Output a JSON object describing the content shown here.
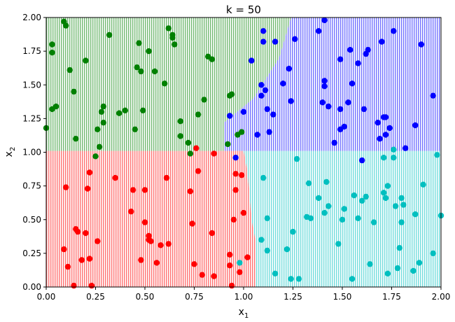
{
  "chart_data": {
    "type": "scatter",
    "title": "k = 50",
    "xlabel_base": "x",
    "xlabel_sub": "1",
    "ylabel_base": "x",
    "ylabel_sub": "2",
    "xlim": [
      0,
      2
    ],
    "ylim": [
      0,
      2
    ],
    "xticks": [
      "0.00",
      "0.25",
      "0.50",
      "0.75",
      "1.00",
      "1.25",
      "1.50",
      "1.75",
      "2.00"
    ],
    "yticks": [
      "0.00",
      "0.25",
      "0.50",
      "0.75",
      "1.00",
      "1.25",
      "1.50",
      "1.75",
      "2.00"
    ],
    "grid": false,
    "legend": "none",
    "background": "dense dotted decision regions (k-NN, k = 50)",
    "colors": {
      "green": "#008000",
      "blue": "#0000ff",
      "red": "#ff0000",
      "cyan": "#00bfbf"
    },
    "regions": [
      {
        "color": "green",
        "polygon": [
          [
            0,
            1.01
          ],
          [
            0.9,
            1.01
          ],
          [
            0.9,
            1.22
          ],
          [
            1.05,
            1.4
          ],
          [
            1.18,
            1.7
          ],
          [
            1.24,
            2.0
          ],
          [
            0,
            2.0
          ]
        ]
      },
      {
        "color": "blue",
        "polygon": [
          [
            0.9,
            1.01
          ],
          [
            2.0,
            1.01
          ],
          [
            2.0,
            2.0
          ],
          [
            1.24,
            2.0
          ],
          [
            1.18,
            1.7
          ],
          [
            1.05,
            1.4
          ],
          [
            0.9,
            1.22
          ]
        ]
      },
      {
        "color": "red",
        "polygon": [
          [
            0,
            0
          ],
          [
            1.06,
            0
          ],
          [
            1.06,
            0.35
          ],
          [
            1.04,
            0.5
          ],
          [
            1.02,
            0.85
          ],
          [
            1.0,
            1.01
          ],
          [
            0,
            1.01
          ]
        ]
      },
      {
        "color": "cyan",
        "polygon": [
          [
            1.06,
            0
          ],
          [
            2.0,
            0
          ],
          [
            2.0,
            1.01
          ],
          [
            1.0,
            1.01
          ],
          [
            1.02,
            0.85
          ],
          [
            1.04,
            0.5
          ],
          [
            1.06,
            0.35
          ]
        ]
      }
    ],
    "series": [
      {
        "color": "green",
        "points": [
          [
            0.0,
            1.18
          ],
          [
            0.03,
            1.74
          ],
          [
            0.03,
            1.8
          ],
          [
            0.03,
            1.32
          ],
          [
            0.05,
            1.34
          ],
          [
            0.09,
            1.97
          ],
          [
            0.1,
            1.94
          ],
          [
            0.12,
            1.61
          ],
          [
            0.14,
            1.45
          ],
          [
            0.15,
            1.1
          ],
          [
            0.2,
            1.68
          ],
          [
            0.25,
            0.97
          ],
          [
            0.26,
            1.17
          ],
          [
            0.27,
            1.04
          ],
          [
            0.28,
            1.3
          ],
          [
            0.29,
            1.34
          ],
          [
            0.29,
            1.22
          ],
          [
            0.32,
            1.87
          ],
          [
            0.37,
            1.29
          ],
          [
            0.4,
            1.31
          ],
          [
            0.45,
            1.17
          ],
          [
            0.46,
            1.63
          ],
          [
            0.47,
            1.81
          ],
          [
            0.48,
            1.6
          ],
          [
            0.49,
            1.31
          ],
          [
            0.52,
            1.75
          ],
          [
            0.55,
            1.6
          ],
          [
            0.6,
            1.51
          ],
          [
            0.62,
            1.92
          ],
          [
            0.64,
            1.87
          ],
          [
            0.64,
            1.85
          ],
          [
            0.65,
            1.8
          ],
          [
            0.68,
            1.12
          ],
          [
            0.68,
            1.23
          ],
          [
            0.72,
            1.07
          ],
          [
            0.73,
            0.99
          ],
          [
            0.77,
            1.28
          ],
          [
            0.8,
            1.39
          ],
          [
            0.82,
            1.71
          ],
          [
            0.84,
            1.69
          ],
          [
            0.92,
            1.06
          ],
          [
            0.93,
            1.42
          ],
          [
            0.94,
            1.43
          ],
          [
            0.97,
            1.13
          ],
          [
            0.99,
            1.15
          ]
        ]
      },
      {
        "color": "blue",
        "points": [
          [
            0.93,
            1.27
          ],
          [
            0.96,
            0.96
          ],
          [
            1.0,
            1.3
          ],
          [
            1.04,
            1.68
          ],
          [
            1.07,
            1.13
          ],
          [
            1.09,
            1.42
          ],
          [
            1.09,
            1.5
          ],
          [
            1.1,
            1.9
          ],
          [
            1.1,
            1.82
          ],
          [
            1.11,
            1.46
          ],
          [
            1.12,
            1.32
          ],
          [
            1.13,
            1.15
          ],
          [
            1.15,
            1.28
          ],
          [
            1.16,
            1.82
          ],
          [
            1.2,
            1.51
          ],
          [
            1.23,
            1.62
          ],
          [
            1.24,
            1.38
          ],
          [
            1.26,
            1.84
          ],
          [
            1.38,
            1.9
          ],
          [
            1.4,
            1.37
          ],
          [
            1.41,
            1.53
          ],
          [
            1.41,
            1.49
          ],
          [
            1.41,
            1.98
          ],
          [
            1.43,
            1.34
          ],
          [
            1.46,
            1.07
          ],
          [
            1.49,
            1.17
          ],
          [
            1.49,
            1.69
          ],
          [
            1.49,
            1.32
          ],
          [
            1.51,
            1.19
          ],
          [
            1.53,
            1.37
          ],
          [
            1.54,
            1.76
          ],
          [
            1.55,
            1.51
          ],
          [
            1.58,
            1.66
          ],
          [
            1.6,
            0.94
          ],
          [
            1.61,
            1.32
          ],
          [
            1.62,
            1.73
          ],
          [
            1.63,
            1.76
          ],
          [
            1.68,
            1.22
          ],
          [
            1.69,
            1.1
          ],
          [
            1.7,
            1.82
          ],
          [
            1.72,
            1.13
          ],
          [
            1.71,
            1.26
          ],
          [
            1.72,
            1.26
          ],
          [
            1.74,
            1.18
          ],
          [
            1.76,
            1.9
          ],
          [
            1.82,
            1.03
          ],
          [
            1.87,
            1.2
          ],
          [
            1.9,
            1.8
          ],
          [
            1.96,
            1.42
          ]
        ]
      },
      {
        "color": "red",
        "points": [
          [
            0.09,
            0.28
          ],
          [
            0.1,
            0.74
          ],
          [
            0.11,
            0.15
          ],
          [
            0.14,
            0.01
          ],
          [
            0.15,
            0.43
          ],
          [
            0.16,
            0.41
          ],
          [
            0.18,
            0.2
          ],
          [
            0.2,
            0.4
          ],
          [
            0.21,
            0.73
          ],
          [
            0.22,
            0.85
          ],
          [
            0.22,
            0.21
          ],
          [
            0.23,
            0.01
          ],
          [
            0.26,
            0.34
          ],
          [
            0.35,
            0.81
          ],
          [
            0.43,
            0.56
          ],
          [
            0.44,
            0.72
          ],
          [
            0.48,
            0.2
          ],
          [
            0.5,
            0.72
          ],
          [
            0.5,
            0.48
          ],
          [
            0.52,
            0.35
          ],
          [
            0.52,
            0.38
          ],
          [
            0.53,
            0.34
          ],
          [
            0.56,
            0.18
          ],
          [
            0.58,
            0.31
          ],
          [
            0.61,
            0.81
          ],
          [
            0.62,
            0.32
          ],
          [
            0.73,
            0.71
          ],
          [
            0.74,
            0.47
          ],
          [
            0.75,
            0.17
          ],
          [
            0.76,
            1.03
          ],
          [
            0.77,
            0.86
          ],
          [
            0.79,
            0.09
          ],
          [
            0.84,
            0.4
          ],
          [
            0.85,
            0.08
          ],
          [
            0.85,
            0.99
          ],
          [
            0.93,
            0.16
          ],
          [
            0.93,
            0.24
          ],
          [
            0.94,
            0.01
          ],
          [
            0.95,
            0.5
          ],
          [
            0.96,
            0.84
          ],
          [
            0.96,
            0.72
          ],
          [
            0.98,
            0.11
          ],
          [
            0.99,
            0.83
          ],
          [
            1.0,
            0.55
          ],
          [
            1.02,
            0.22
          ]
        ]
      },
      {
        "color": "cyan",
        "points": [
          [
            0.98,
            0.18
          ],
          [
            1.09,
            0.35
          ],
          [
            1.1,
            0.81
          ],
          [
            1.12,
            0.51
          ],
          [
            1.12,
            0.27
          ],
          [
            1.16,
            0.1
          ],
          [
            1.22,
            0.28
          ],
          [
            1.24,
            0.06
          ],
          [
            1.25,
            0.41
          ],
          [
            1.27,
            0.95
          ],
          [
            1.28,
            0.06
          ],
          [
            1.32,
            0.52
          ],
          [
            1.33,
            0.77
          ],
          [
            1.34,
            0.51
          ],
          [
            1.38,
            0.66
          ],
          [
            1.41,
            0.55
          ],
          [
            1.42,
            0.78
          ],
          [
            1.43,
            0.6
          ],
          [
            1.48,
            0.32
          ],
          [
            1.5,
            0.5
          ],
          [
            1.51,
            0.58
          ],
          [
            1.55,
            0.06
          ],
          [
            1.56,
            0.68
          ],
          [
            1.58,
            0.51
          ],
          [
            1.6,
            0.64
          ],
          [
            1.62,
            0.67
          ],
          [
            1.64,
            0.17
          ],
          [
            1.66,
            0.48
          ],
          [
            1.71,
            0.7
          ],
          [
            1.71,
            0.96
          ],
          [
            1.72,
            0.66
          ],
          [
            1.73,
            0.1
          ],
          [
            1.73,
            0.75
          ],
          [
            1.76,
            1.02
          ],
          [
            1.76,
            0.96
          ],
          [
            1.77,
            0.6
          ],
          [
            1.78,
            0.14
          ],
          [
            1.79,
            0.29
          ],
          [
            1.8,
            0.66
          ],
          [
            1.81,
            0.61
          ],
          [
            1.8,
            0.48
          ],
          [
            1.86,
            0.12
          ],
          [
            1.87,
            0.54
          ],
          [
            1.89,
            0.18
          ],
          [
            1.91,
            0.76
          ],
          [
            1.96,
            0.25
          ],
          [
            1.98,
            0.98
          ],
          [
            2.0,
            0.53
          ]
        ]
      }
    ]
  }
}
